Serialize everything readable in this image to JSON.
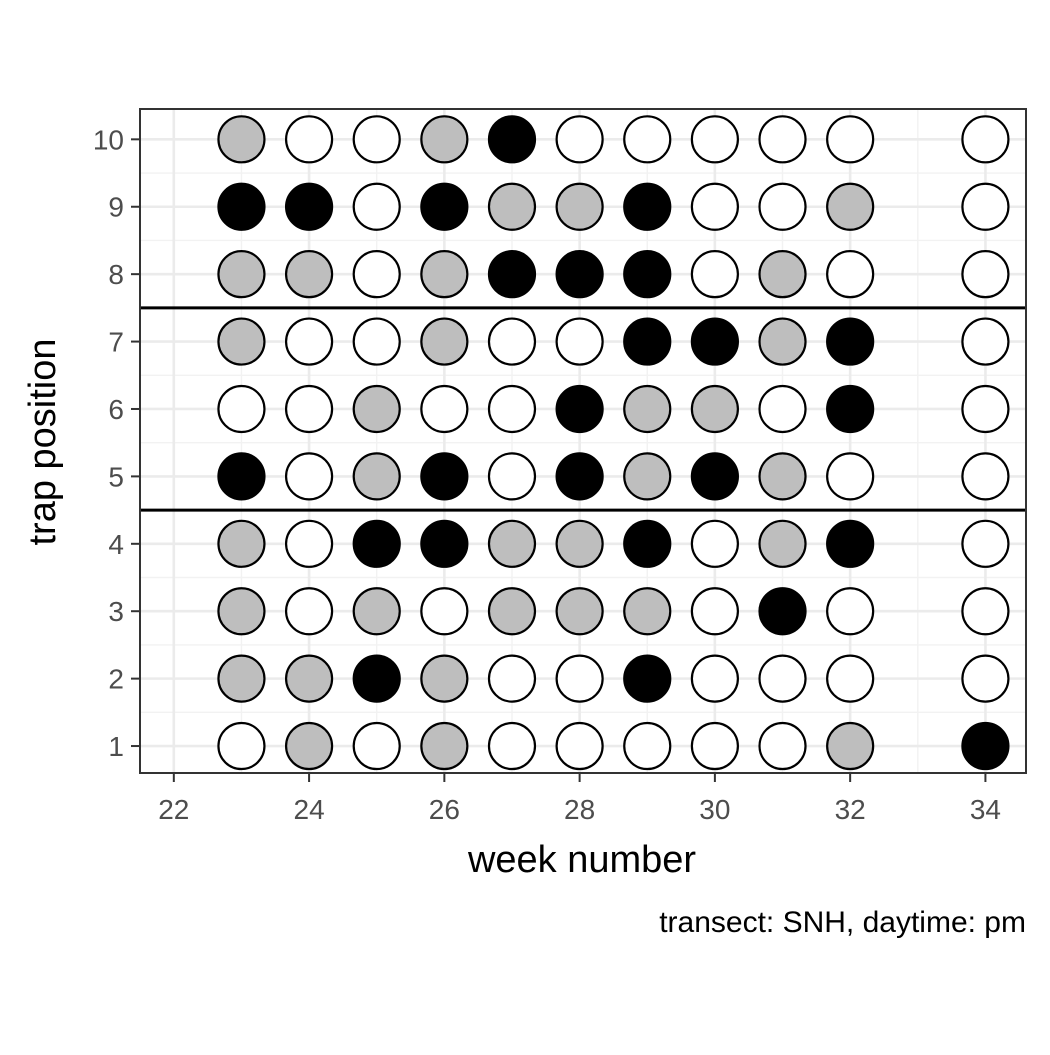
{
  "chart_data": {
    "type": "scatter",
    "xlabel": "week number",
    "ylabel": "trap position",
    "caption": "transect: SNH, daytime: pm",
    "xlim": [
      21.5,
      34.6
    ],
    "ylim": [
      0.6,
      10.45
    ],
    "x_ticks": [
      22,
      24,
      26,
      28,
      30,
      32,
      34
    ],
    "y_ticks": [
      1,
      2,
      3,
      4,
      5,
      6,
      7,
      8,
      9,
      10
    ],
    "grid": true,
    "reference_lines_y": [
      4.5,
      7.5
    ],
    "fill_colors": {
      "white": "#ffffff",
      "grey": "#bebebe",
      "black": "#000000"
    },
    "weeks": [
      23,
      24,
      25,
      26,
      27,
      28,
      29,
      30,
      31,
      32,
      34
    ],
    "rows": [
      {
        "y": 10,
        "fills": [
          "grey",
          "white",
          "white",
          "grey",
          "black",
          "white",
          "white",
          "white",
          "white",
          "white",
          "white"
        ]
      },
      {
        "y": 9,
        "fills": [
          "black",
          "black",
          "white",
          "black",
          "grey",
          "grey",
          "black",
          "white",
          "white",
          "grey",
          "white"
        ]
      },
      {
        "y": 8,
        "fills": [
          "grey",
          "grey",
          "white",
          "grey",
          "black",
          "black",
          "black",
          "white",
          "grey",
          "white",
          "white"
        ]
      },
      {
        "y": 7,
        "fills": [
          "grey",
          "white",
          "white",
          "grey",
          "white",
          "white",
          "black",
          "black",
          "grey",
          "black",
          "white"
        ]
      },
      {
        "y": 6,
        "fills": [
          "white",
          "white",
          "grey",
          "white",
          "white",
          "black",
          "grey",
          "grey",
          "white",
          "black",
          "white"
        ]
      },
      {
        "y": 5,
        "fills": [
          "black",
          "white",
          "grey",
          "black",
          "white",
          "black",
          "grey",
          "black",
          "grey",
          "white",
          "white"
        ]
      },
      {
        "y": 4,
        "fills": [
          "grey",
          "white",
          "black",
          "black",
          "grey",
          "grey",
          "black",
          "white",
          "grey",
          "black",
          "white"
        ]
      },
      {
        "y": 3,
        "fills": [
          "grey",
          "white",
          "grey",
          "white",
          "grey",
          "grey",
          "grey",
          "white",
          "black",
          "white",
          "white"
        ]
      },
      {
        "y": 2,
        "fills": [
          "grey",
          "grey",
          "black",
          "grey",
          "white",
          "white",
          "black",
          "white",
          "white",
          "white",
          "white"
        ]
      },
      {
        "y": 1,
        "fills": [
          "white",
          "grey",
          "white",
          "grey",
          "white",
          "white",
          "white",
          "white",
          "white",
          "grey",
          "black"
        ]
      }
    ]
  }
}
